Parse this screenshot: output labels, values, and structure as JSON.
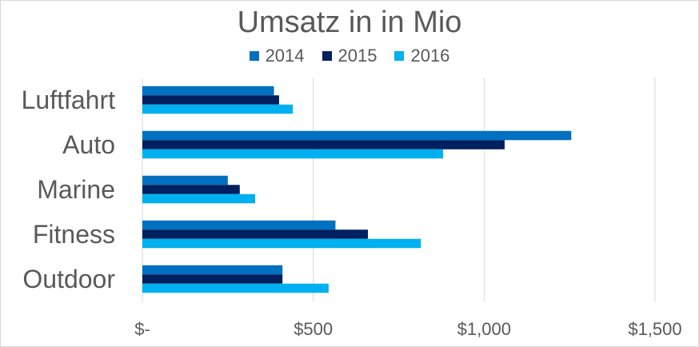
{
  "chart_data": {
    "type": "bar",
    "orientation": "horizontal",
    "title": "Umsatz in in Mio",
    "categories": [
      "Luftfahrt",
      "Auto",
      "Marine",
      "Fitness",
      "Outdoor"
    ],
    "series": [
      {
        "name": "2014",
        "color": "#0070C0",
        "values": [
          385,
          1255,
          250,
          565,
          410
        ]
      },
      {
        "name": "2015",
        "color": "#002060",
        "values": [
          400,
          1060,
          285,
          660,
          410
        ]
      },
      {
        "name": "2016",
        "color": "#00B0F0",
        "values": [
          440,
          880,
          330,
          815,
          545
        ]
      }
    ],
    "xlim": [
      0,
      1500
    ],
    "xticks": [
      0,
      500,
      1000,
      1500
    ],
    "xtick_labels": [
      "$-",
      "$500",
      "$1,000",
      "$1,500"
    ],
    "grid": "vertical",
    "legend": "top"
  }
}
